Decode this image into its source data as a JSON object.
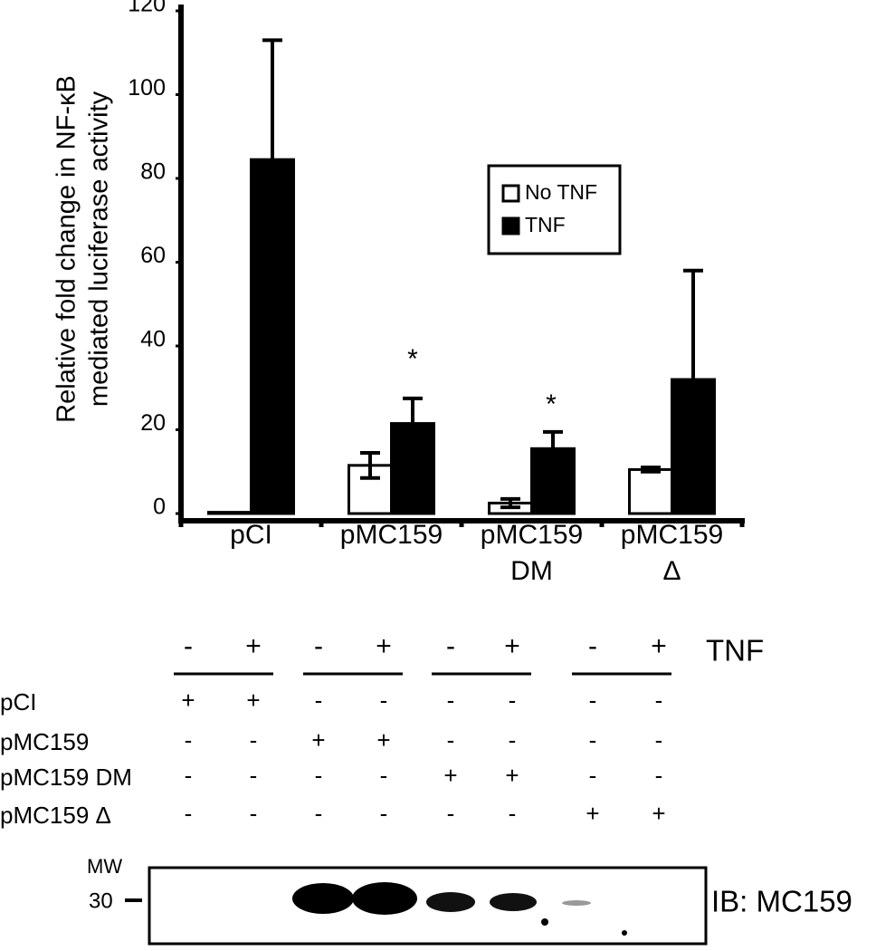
{
  "chart_data": {
    "type": "bar",
    "ylabel": [
      "Relative fold change in NF-κB",
      "mediated luciferase activity"
    ],
    "categories": [
      [
        "pCI"
      ],
      [
        "pMC159"
      ],
      [
        "pMC159",
        "DM"
      ],
      [
        "pMC159",
        "Δ"
      ]
    ],
    "series": [
      {
        "name": "No TNF",
        "color": "#ffffff",
        "values": [
          0.3,
          11.5,
          2.5,
          10.5
        ],
        "errors": [
          0,
          3,
          1,
          0.5
        ]
      },
      {
        "name": "TNF",
        "color": "#000000",
        "values": [
          84.5,
          21.5,
          15.5,
          32
        ],
        "errors": [
          28.5,
          6,
          4,
          26
        ]
      }
    ],
    "annotations": [
      "*",
      "*"
    ],
    "ylim": [
      0,
      120
    ],
    "yticks": [
      0,
      20,
      40,
      60,
      80,
      100,
      120
    ],
    "grid": false,
    "legend": "upper right"
  },
  "blot": {
    "treatment_label": "TNF",
    "treatment": [
      "-",
      "+",
      "-",
      "+",
      "-",
      "+",
      "-",
      "+"
    ],
    "rows": [
      {
        "label": "pCI",
        "signs": [
          "+",
          "+",
          "-",
          "-",
          "-",
          "-",
          "-",
          "-"
        ]
      },
      {
        "label": "pMC159",
        "signs": [
          "-",
          "-",
          "+",
          "+",
          "-",
          "-",
          "-",
          "-"
        ]
      },
      {
        "label": "pMC159 DM",
        "signs": [
          "-",
          "-",
          "-",
          "-",
          "+",
          "+",
          "-",
          "-"
        ]
      },
      {
        "label": "pMC159 Δ",
        "signs": [
          "-",
          "-",
          "-",
          "-",
          "-",
          "-",
          "+",
          "+"
        ]
      }
    ],
    "mw_label": "MW",
    "mw_marker": "30",
    "antibody": "IB: MC159"
  }
}
